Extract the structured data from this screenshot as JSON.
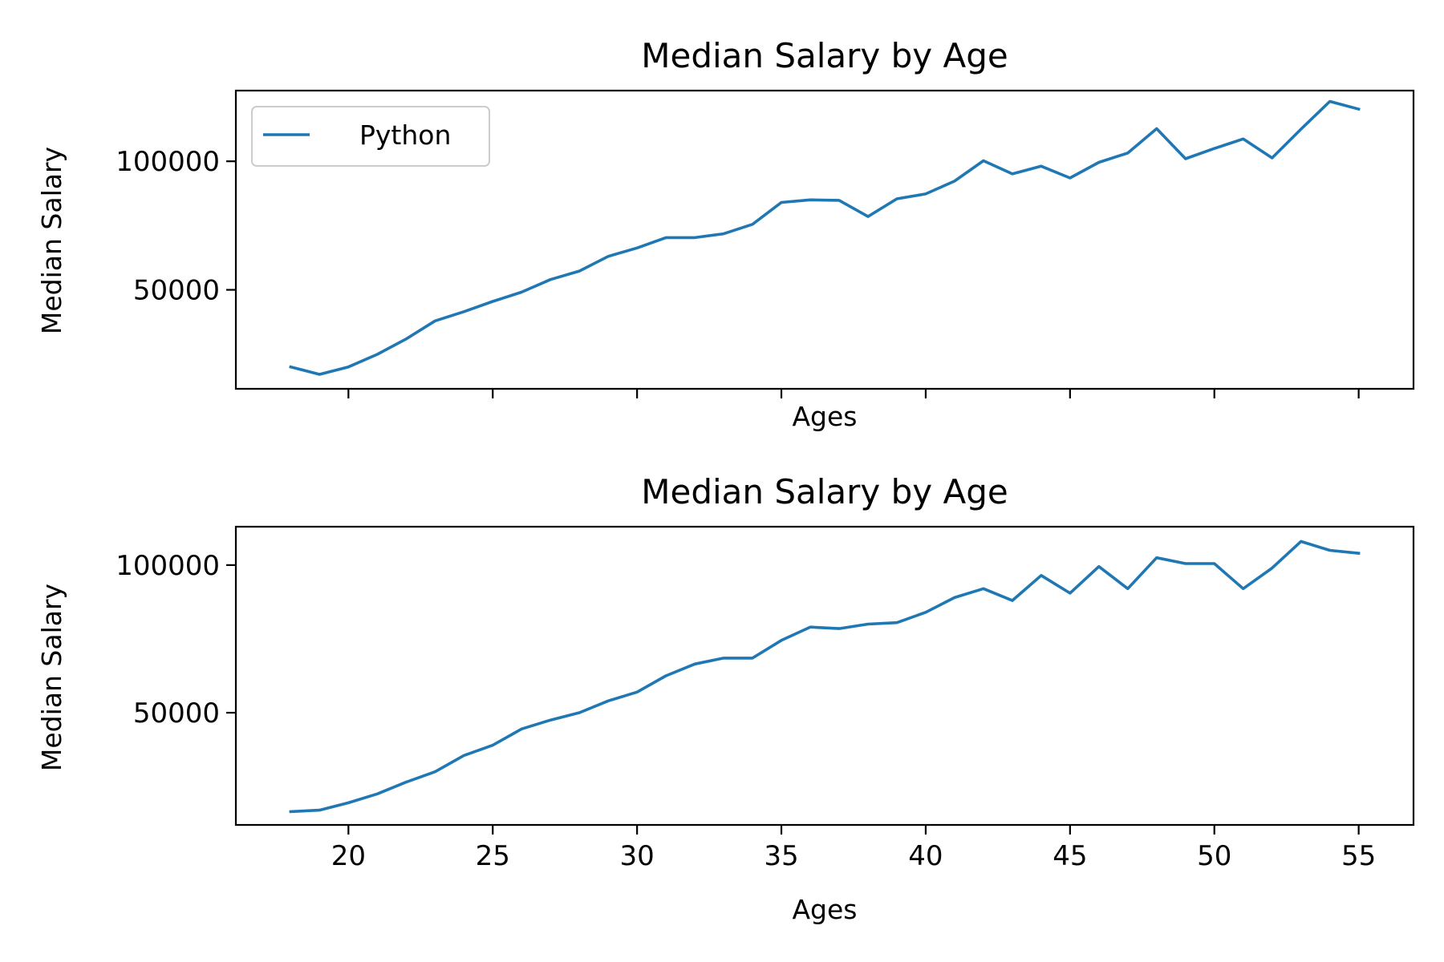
{
  "chart_data": [
    {
      "type": "line",
      "title": "Median Salary by Age",
      "xlabel": "Ages",
      "ylabel": "Median Salary",
      "xlim": [
        16.1,
        56.9
      ],
      "ylim": [
        11500,
        127500
      ],
      "xticks": [
        20,
        25,
        30,
        35,
        40,
        45,
        50,
        55
      ],
      "yticks": [
        50000,
        100000
      ],
      "show_xticklabels": false,
      "grid": false,
      "legend": {
        "placement": "upper-left"
      },
      "color": "#1f77b4",
      "x": [
        18,
        19,
        20,
        21,
        22,
        23,
        24,
        25,
        26,
        27,
        28,
        29,
        30,
        31,
        32,
        33,
        34,
        35,
        36,
        37,
        38,
        39,
        40,
        41,
        42,
        43,
        44,
        45,
        46,
        47,
        48,
        49,
        50,
        51,
        52,
        53,
        54,
        55
      ],
      "series": [
        {
          "name": "Python",
          "values": [
            20000,
            17100,
            20000,
            24900,
            30900,
            37900,
            41500,
            45500,
            49100,
            54000,
            57300,
            63000,
            66300,
            70300,
            70300,
            71800,
            75500,
            84000,
            85000,
            84800,
            78500,
            85400,
            87300,
            92300,
            100200,
            95100,
            98100,
            93500,
            99600,
            103200,
            112700,
            101000,
            105000,
            108700,
            101300,
            112500,
            123300,
            120300
          ]
        }
      ]
    },
    {
      "type": "line",
      "title": "Median Salary by Age",
      "xlabel": "Ages",
      "ylabel": "Median Salary",
      "xlim": [
        16.1,
        56.9
      ],
      "ylim": [
        12000,
        113000
      ],
      "xticks": [
        20,
        25,
        30,
        35,
        40,
        45,
        50,
        55
      ],
      "yticks": [
        50000,
        100000
      ],
      "show_xticklabels": true,
      "grid": false,
      "color": "#1f77b4",
      "x": [
        18,
        19,
        20,
        21,
        22,
        23,
        24,
        25,
        26,
        27,
        28,
        29,
        30,
        31,
        32,
        33,
        34,
        35,
        36,
        37,
        38,
        39,
        40,
        41,
        42,
        43,
        44,
        45,
        46,
        47,
        48,
        49,
        50,
        51,
        52,
        53,
        54,
        55
      ],
      "series": [
        {
          "values": [
            16500,
            17000,
            19500,
            22500,
            26500,
            30000,
            35500,
            39000,
            44500,
            47500,
            50000,
            54000,
            57000,
            62500,
            66500,
            68500,
            68500,
            74500,
            79000,
            78500,
            80000,
            80500,
            84000,
            89000,
            92000,
            88000,
            96500,
            90500,
            99500,
            92000,
            102500,
            100500,
            100500,
            92000,
            99000,
            108000,
            105000,
            104000
          ]
        }
      ]
    }
  ]
}
